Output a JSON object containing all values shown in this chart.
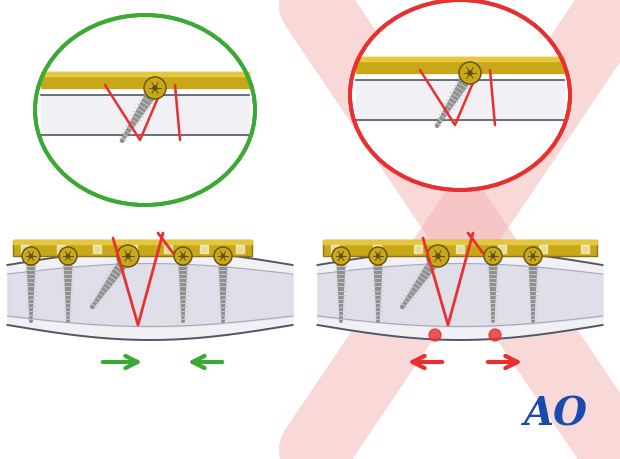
{
  "fig_width": 6.2,
  "fig_height": 4.59,
  "dpi": 100,
  "bg_color": "#ffffff",
  "green_color": "#3aaa35",
  "red_color": "#e83030",
  "light_red_color": "#f5b8b8",
  "bone_fill": "#f0f0f5",
  "bone_inner": "#e0e0ea",
  "bone_outline": "#555566",
  "plate_gold": "#c8a818",
  "plate_highlight": "#e8cc40",
  "plate_dark": "#907010",
  "screw_gray": "#909090",
  "screw_thread": "#aaaaaa",
  "screw_tip": "#707070",
  "screw_head_gold": "#c8a818",
  "screw_head_dark": "#605010",
  "ao_blue": "#1a4aae",
  "red_dot_color": "#cc2020"
}
